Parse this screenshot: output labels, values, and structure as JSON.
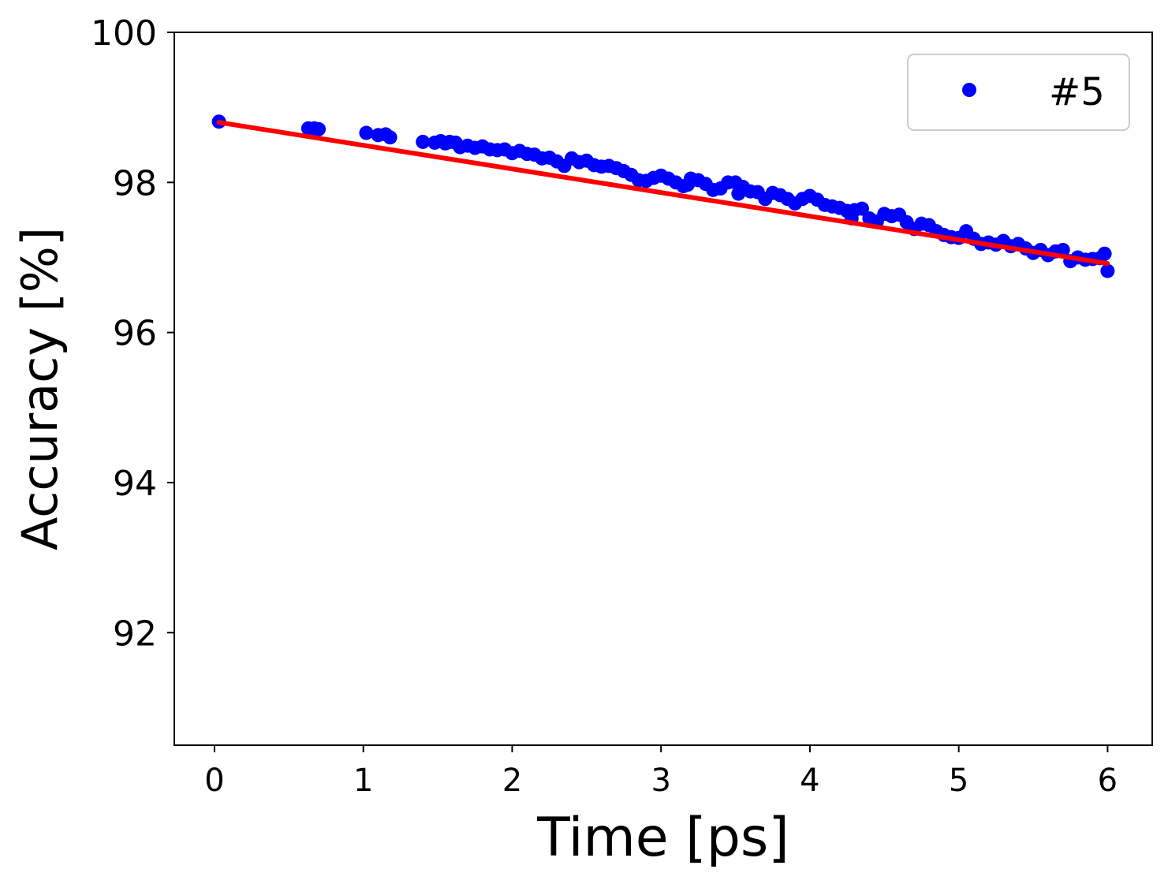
{
  "chart_data": {
    "type": "scatter",
    "xlabel": "Time [ps]",
    "ylabel": "Accuracy [%]",
    "xlim": [
      -0.27,
      6.3
    ],
    "ylim": [
      90.5,
      100
    ],
    "x_ticks": [
      "0",
      "1",
      "2",
      "3",
      "4",
      "5",
      "6"
    ],
    "y_ticks": [
      "92",
      "94",
      "96",
      "98",
      "100"
    ],
    "legend_position": "top-right",
    "grid": false,
    "series": [
      {
        "name": "#5",
        "kind": "scatter",
        "color": "#0000ff",
        "points": [
          [
            0.03,
            98.81
          ],
          [
            0.63,
            98.72
          ],
          [
            0.67,
            98.72
          ],
          [
            0.7,
            98.71
          ],
          [
            1.02,
            98.66
          ],
          [
            1.1,
            98.63
          ],
          [
            1.15,
            98.64
          ],
          [
            1.18,
            98.6
          ],
          [
            1.4,
            98.54
          ],
          [
            1.48,
            98.53
          ],
          [
            1.52,
            98.55
          ],
          [
            1.55,
            98.52
          ],
          [
            1.58,
            98.54
          ],
          [
            1.62,
            98.53
          ],
          [
            1.65,
            98.47
          ],
          [
            1.7,
            98.49
          ],
          [
            1.75,
            98.46
          ],
          [
            1.8,
            98.48
          ],
          [
            1.85,
            98.44
          ],
          [
            1.9,
            98.43
          ],
          [
            1.95,
            98.44
          ],
          [
            2.0,
            98.39
          ],
          [
            2.05,
            98.42
          ],
          [
            2.1,
            98.38
          ],
          [
            2.15,
            98.37
          ],
          [
            2.2,
            98.32
          ],
          [
            2.25,
            98.33
          ],
          [
            2.3,
            98.28
          ],
          [
            2.35,
            98.22
          ],
          [
            2.4,
            98.32
          ],
          [
            2.45,
            98.27
          ],
          [
            2.5,
            98.29
          ],
          [
            2.55,
            98.23
          ],
          [
            2.6,
            98.21
          ],
          [
            2.65,
            98.22
          ],
          [
            2.7,
            98.19
          ],
          [
            2.75,
            98.15
          ],
          [
            2.8,
            98.1
          ],
          [
            2.85,
            98.03
          ],
          [
            2.9,
            98.02
          ],
          [
            2.95,
            98.06
          ],
          [
            3.0,
            98.09
          ],
          [
            3.05,
            98.05
          ],
          [
            3.1,
            98.0
          ],
          [
            3.15,
            97.95
          ],
          [
            3.18,
            97.97
          ],
          [
            3.2,
            98.05
          ],
          [
            3.25,
            98.03
          ],
          [
            3.3,
            97.98
          ],
          [
            3.35,
            97.9
          ],
          [
            3.4,
            97.92
          ],
          [
            3.45,
            98.0
          ],
          [
            3.5,
            98.0
          ],
          [
            3.52,
            97.85
          ],
          [
            3.55,
            97.94
          ],
          [
            3.6,
            97.88
          ],
          [
            3.65,
            97.87
          ],
          [
            3.7,
            97.78
          ],
          [
            3.75,
            97.86
          ],
          [
            3.8,
            97.83
          ],
          [
            3.85,
            97.78
          ],
          [
            3.9,
            97.72
          ],
          [
            3.95,
            97.78
          ],
          [
            4.0,
            97.82
          ],
          [
            4.05,
            97.77
          ],
          [
            4.1,
            97.7
          ],
          [
            4.15,
            97.68
          ],
          [
            4.2,
            97.66
          ],
          [
            4.25,
            97.62
          ],
          [
            4.28,
            97.52
          ],
          [
            4.3,
            97.63
          ],
          [
            4.35,
            97.65
          ],
          [
            4.4,
            97.52
          ],
          [
            4.45,
            97.48
          ],
          [
            4.5,
            97.58
          ],
          [
            4.55,
            97.55
          ],
          [
            4.6,
            97.57
          ],
          [
            4.65,
            97.47
          ],
          [
            4.7,
            97.38
          ],
          [
            4.75,
            97.45
          ],
          [
            4.8,
            97.43
          ],
          [
            4.85,
            97.35
          ],
          [
            4.9,
            97.3
          ],
          [
            4.95,
            97.27
          ],
          [
            5.0,
            97.26
          ],
          [
            5.05,
            97.35
          ],
          [
            5.1,
            97.25
          ],
          [
            5.15,
            97.18
          ],
          [
            5.2,
            97.2
          ],
          [
            5.25,
            97.17
          ],
          [
            5.3,
            97.22
          ],
          [
            5.35,
            97.15
          ],
          [
            5.4,
            97.18
          ],
          [
            5.45,
            97.12
          ],
          [
            5.5,
            97.06
          ],
          [
            5.55,
            97.1
          ],
          [
            5.6,
            97.03
          ],
          [
            5.65,
            97.08
          ],
          [
            5.7,
            97.1
          ],
          [
            5.75,
            96.95
          ],
          [
            5.8,
            97.0
          ],
          [
            5.85,
            96.97
          ],
          [
            5.9,
            96.98
          ],
          [
            5.95,
            96.99
          ],
          [
            5.98,
            97.05
          ],
          [
            6.0,
            96.82
          ]
        ]
      },
      {
        "kind": "line",
        "color": "#ff0000",
        "points": [
          [
            0.03,
            98.8
          ],
          [
            6.0,
            96.92
          ]
        ]
      }
    ]
  }
}
